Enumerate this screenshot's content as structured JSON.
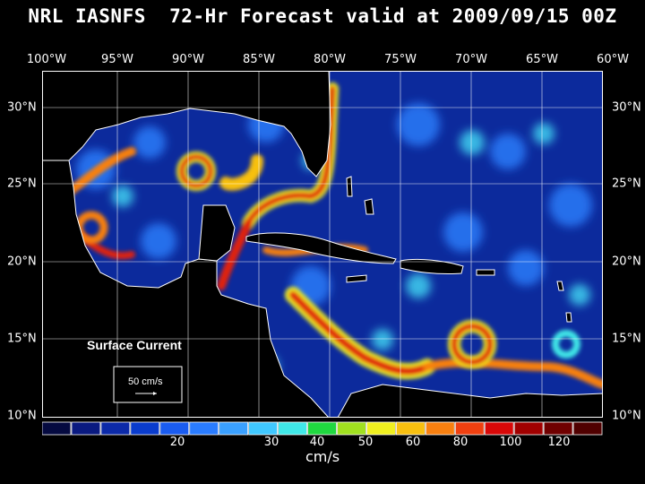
{
  "title": "NRL IASNFS  72-Hr Forecast valid at 2009/09/15 00Z",
  "lon_labels": [
    "100°W",
    "95°W",
    "90°W",
    "85°W",
    "80°W",
    "75°W",
    "70°W",
    "65°W",
    "60°W"
  ],
  "lat_labels": [
    "30°N",
    "25°N",
    "20°N",
    "15°N",
    "10°N"
  ],
  "legend": {
    "title": "Surface Current",
    "scale_text": "50 cm/s"
  },
  "colorbar": {
    "colors": [
      "#050a40",
      "#0a1a80",
      "#0c2aa8",
      "#0a3ccc",
      "#1a5cf0",
      "#2a7cff",
      "#3aa0ff",
      "#40c8ff",
      "#40e8e8",
      "#20d840",
      "#a0e020",
      "#f0f020",
      "#f8c010",
      "#f88010",
      "#f04010",
      "#d80808",
      "#a00000",
      "#700000",
      "#500000"
    ],
    "tick_labels": [
      "20",
      "30",
      "40",
      "50",
      "60",
      "80",
      "100",
      "120"
    ],
    "unit": "cm/s"
  },
  "colors": {
    "background": "#000000",
    "ocean_base": "#0c2a9c",
    "land": "#000000",
    "coast": "#ffffff"
  }
}
